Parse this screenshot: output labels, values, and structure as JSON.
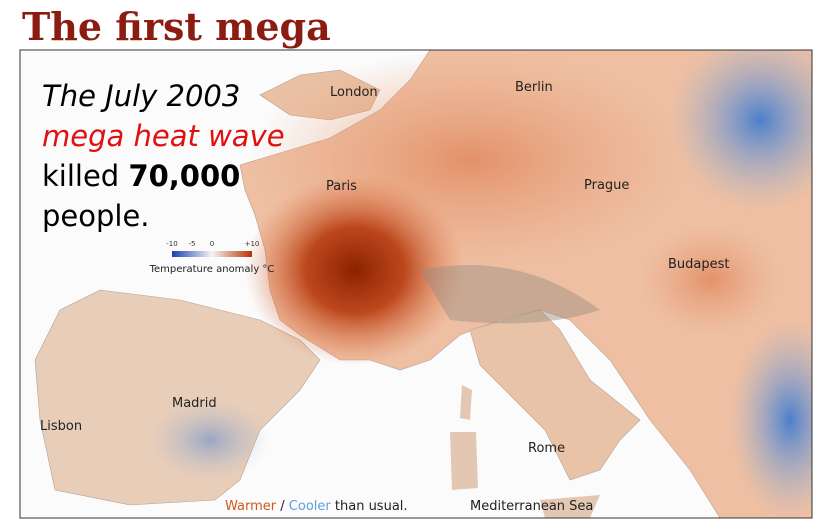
{
  "header": {
    "title": "The first mega"
  },
  "headline": {
    "line1": "The July 2003",
    "line2": "mega heat wave",
    "line3_prefix": "killed",
    "line3_number": "70,000",
    "line4": "people."
  },
  "legend": {
    "ticks": [
      "-10",
      "-5",
      "0",
      "+10"
    ],
    "label": "Temperature anomaly °C"
  },
  "cities": [
    "London",
    "Berlin",
    "Paris",
    "Prague",
    "Budapest",
    "Madrid",
    "Lisbon",
    "Rome"
  ],
  "sea_label": "Mediterranean Sea",
  "caption": {
    "warmer": "Warmer",
    "separator": "/",
    "cooler": "Cooler",
    "rest": "than usual."
  }
}
